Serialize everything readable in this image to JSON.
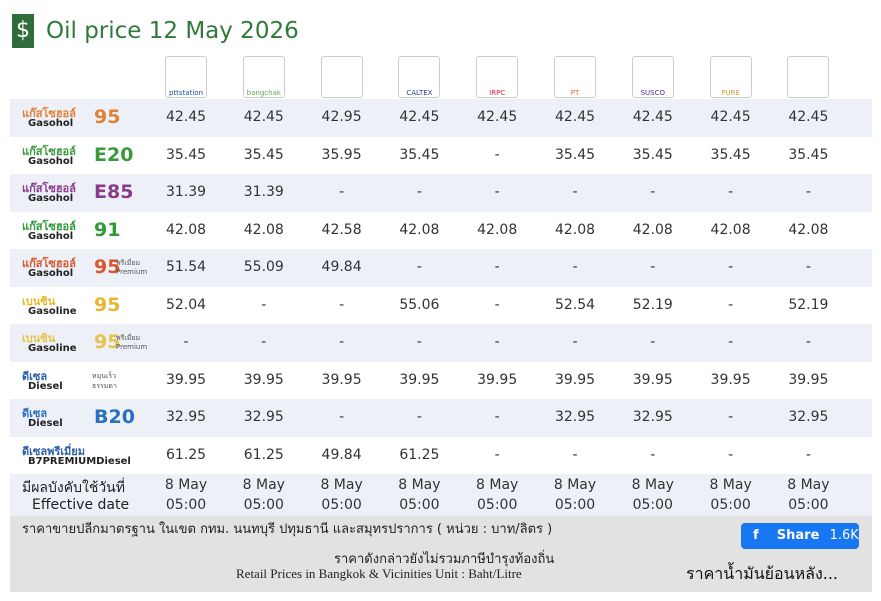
{
  "title": "Oil price 12 May 2026",
  "logo_texts": [
    "pttstation",
    "bangchak",
    "CALTEX",
    "IRPC",
    "PT",
    "SUSCO",
    "PURE"
  ],
  "rows": [
    {
      "thai": "แก๊สโซฮอล์",
      "english": "Gasohol",
      "grade": "95",
      "grade_color": "#e0823a",
      "prices": [
        "42.45",
        "42.45",
        "42.95",
        "42.45",
        "42.45",
        "42.45",
        "42.45",
        "42.45",
        "42.45"
      ]
    },
    {
      "thai": "แก๊สโซฮอล์",
      "english": "Gasohol",
      "grade": "E20",
      "grade_color": "#3a9a3c",
      "prices": [
        "35.45",
        "35.45",
        "35.95",
        "35.45",
        "-",
        "35.45",
        "35.45",
        "35.45",
        "35.45"
      ]
    },
    {
      "thai": "แก๊สโซฮอล์",
      "english": "Gasohol",
      "grade": "E85",
      "grade_color": "#8a3b8e",
      "prices": [
        "31.39",
        "31.39",
        "-",
        "-",
        "-",
        "-",
        "-",
        "-",
        "-"
      ]
    },
    {
      "thai": "แก๊สโซฮอล์",
      "english": "Gasohol",
      "grade": "91",
      "grade_color": "#2f9a3a",
      "prices": [
        "42.08",
        "42.08",
        "42.58",
        "42.08",
        "42.08",
        "42.08",
        "42.08",
        "42.08",
        "42.08"
      ]
    },
    {
      "thai": "แก๊สโซฮอล์",
      "english": "Gasohol",
      "grade": "95",
      "grade_color": "#d9572e",
      "note": [
        "พรีเมี่ยม",
        "Premium"
      ],
      "prices": [
        "51.54",
        "55.09",
        "49.84",
        "-",
        "-",
        "-",
        "-",
        "-",
        "-"
      ]
    },
    {
      "thai": "เบนซิน",
      "english": "Gasoline",
      "grade": "95",
      "grade_color": "#e8b82c",
      "prices": [
        "52.04",
        "-",
        "-",
        "55.06",
        "-",
        "52.54",
        "52.19",
        "-",
        "52.19"
      ]
    },
    {
      "thai": "เบนซิน",
      "english": "Gasoline",
      "grade": "95",
      "grade_color": "#e8c24a",
      "note": [
        "พรีเมี่ยม",
        "Premium"
      ],
      "prices": [
        "-",
        "-",
        "-",
        "-",
        "-",
        "-",
        "-",
        "-",
        "-"
      ]
    },
    {
      "thai": "ดีเซล",
      "english": "Diesel",
      "grade_color": "#2b5fa8",
      "note": [
        "หมุนเร็ว",
        "ธรรมดา"
      ],
      "prices": [
        "39.95",
        "39.95",
        "39.95",
        "39.95",
        "39.95",
        "39.95",
        "39.95",
        "39.95",
        "39.95"
      ]
    },
    {
      "thai": "ดีเซล",
      "english": "Diesel",
      "grade": "B20",
      "grade_color": "#2b6fc0",
      "prices": [
        "32.95",
        "32.95",
        "-",
        "-",
        "-",
        "32.95",
        "32.95",
        "-",
        "32.95"
      ]
    },
    {
      "thai": "ดีเซลพรีเมี่ยม",
      "english": "B7PREMIUMDiesel",
      "grade_color": "#2b5fa8",
      "prices": [
        "61.25",
        "61.25",
        "49.84",
        "61.25",
        "-",
        "-",
        "-",
        "-",
        "-"
      ]
    }
  ],
  "effective": {
    "thai": "มีผลบังคับใช้วันที่",
    "english": "Effective date",
    "dates": [
      "8 May",
      "8 May",
      "8 May",
      "8 May",
      "8 May",
      "8 May",
      "8 May",
      "8 May",
      "8 May"
    ],
    "times": [
      "05:00",
      "05:00",
      "05:00",
      "05:00",
      "05:00",
      "05:00",
      "05:00",
      "05:00",
      "05:00"
    ]
  },
  "footer": {
    "line1": "ราคาขายปลีกมาตรฐาน ในเขต กทม. นนทบุรี ปทุมธานี และสมุทรปราการ ( หน่วย : บาท/ลิตร )",
    "line2": "ราคาดังกล่าวยังไม่รวมภาษีบำรุงท้องถิ่น",
    "line3": "Retail Prices in Bangkok & Vicinities Unit : Baht/Litre",
    "share": "Share",
    "share_count": "1.6K",
    "history": "ราคาน้ำมันย้อนหลัง..."
  }
}
